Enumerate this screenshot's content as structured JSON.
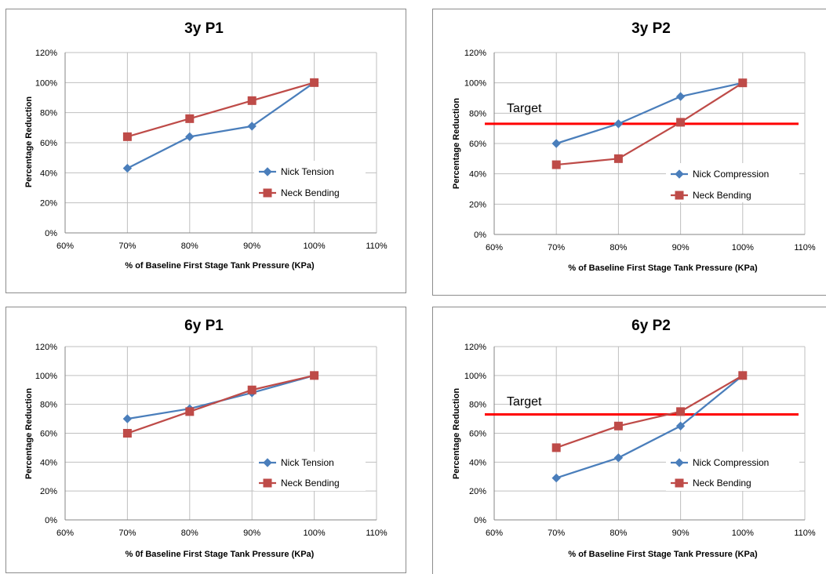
{
  "colors": {
    "series1": "#4a7ebb",
    "series2": "#be4b48",
    "target_line": "#ff0000",
    "grid": "#bfbfbf",
    "border": "#8c8c8c"
  },
  "chart_data": [
    {
      "type": "line",
      "title": "3y P1",
      "xlabel": "% of Baseline First Stage Tank Pressure (KPa)",
      "ylabel": "Percentage Reduction",
      "x": [
        70,
        80,
        90,
        100
      ],
      "xlim": [
        60,
        110
      ],
      "ylim": [
        0,
        120
      ],
      "xticks": [
        "60%",
        "70%",
        "80%",
        "90%",
        "100%",
        "110%"
      ],
      "yticks": [
        "0%",
        "20%",
        "40%",
        "60%",
        "80%",
        "100%",
        "120%"
      ],
      "grid": true,
      "legend_position": "right",
      "series": [
        {
          "name": "Nick Tension",
          "values": [
            43,
            64,
            71,
            100
          ],
          "marker": "diamond"
        },
        {
          "name": "Neck Bending",
          "values": [
            64,
            76,
            88,
            100
          ],
          "marker": "square"
        }
      ],
      "target": null
    },
    {
      "type": "line",
      "title": "3y P2",
      "xlabel": "% of Baseline First Stage Tank Pressure (KPa)",
      "ylabel": "Percentage Reduction",
      "x": [
        70,
        80,
        90,
        100
      ],
      "xlim": [
        60,
        110
      ],
      "ylim": [
        0,
        120
      ],
      "xticks": [
        "60%",
        "70%",
        "80%",
        "90%",
        "100%",
        "110%"
      ],
      "yticks": [
        "0%",
        "20%",
        "40%",
        "60%",
        "80%",
        "100%",
        "120%"
      ],
      "grid": true,
      "legend_position": "right",
      "series": [
        {
          "name": "Nick Compression",
          "values": [
            60,
            73,
            91,
            100
          ],
          "marker": "diamond"
        },
        {
          "name": "Neck Bending",
          "values": [
            46,
            50,
            74,
            100
          ],
          "marker": "square"
        }
      ],
      "target": {
        "label": "Target",
        "value": 73
      }
    },
    {
      "type": "line",
      "title": "6y P1",
      "xlabel": "% 0f Baseline First Stage Tank Pressure (KPa)",
      "ylabel": "Percentage Reduction",
      "x": [
        70,
        80,
        90,
        100
      ],
      "xlim": [
        60,
        110
      ],
      "ylim": [
        0,
        120
      ],
      "xticks": [
        "60%",
        "70%",
        "80%",
        "90%",
        "100%",
        "110%"
      ],
      "yticks": [
        "0%",
        "20%",
        "40%",
        "60%",
        "80%",
        "100%",
        "120%"
      ],
      "grid": true,
      "legend_position": "right",
      "series": [
        {
          "name": "Nick Tension",
          "values": [
            70,
            77,
            88,
            100
          ],
          "marker": "diamond"
        },
        {
          "name": "Neck Bending",
          "values": [
            60,
            75,
            90,
            100
          ],
          "marker": "square"
        }
      ],
      "target": null
    },
    {
      "type": "line",
      "title": "6y P2",
      "xlabel": "% of Baseline First Stage Tank Pressure (KPa)",
      "ylabel": "Percentage Reduction",
      "x": [
        70,
        80,
        90,
        100
      ],
      "xlim": [
        60,
        110
      ],
      "ylim": [
        0,
        120
      ],
      "xticks": [
        "60%",
        "70%",
        "80%",
        "90%",
        "100%",
        "110%"
      ],
      "yticks": [
        "0%",
        "20%",
        "40%",
        "60%",
        "80%",
        "100%",
        "120%"
      ],
      "grid": true,
      "legend_position": "right",
      "series": [
        {
          "name": "Nick Compression",
          "values": [
            29,
            43,
            65,
            100
          ],
          "marker": "diamond"
        },
        {
          "name": "Neck Bending",
          "values": [
            50,
            65,
            75,
            100
          ],
          "marker": "square"
        }
      ],
      "target": {
        "label": "Target",
        "value": 73
      }
    }
  ]
}
